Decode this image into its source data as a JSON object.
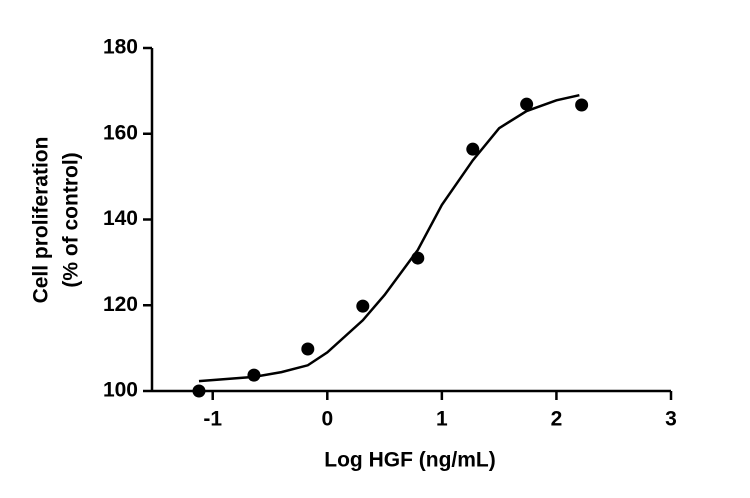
{
  "chart_data": {
    "type": "scatter",
    "x_label": "Log HGF (ng/mL)",
    "y_label": [
      "Cell proliferation",
      "(% of control)"
    ],
    "xlim": [
      -1.53,
      3
    ],
    "xticks": [
      -1,
      0,
      1,
      2,
      3
    ],
    "ylim": [
      100,
      180
    ],
    "yticks": [
      100,
      120,
      140,
      160,
      180
    ],
    "series": [
      {
        "kind": "points",
        "color": "#000000",
        "x": [
          -1.12,
          -0.64,
          -0.17,
          0.31,
          0.79,
          1.27,
          1.74,
          2.22
        ],
        "values": [
          100,
          103.7,
          109.8,
          119.8,
          131,
          156.4,
          166.9,
          166.7
        ]
      },
      {
        "kind": "curve",
        "color": "#000000",
        "x": [
          -1.12,
          -0.64,
          -0.4,
          -0.17,
          0,
          0.31,
          0.5,
          0.79,
          1,
          1.27,
          1.5,
          1.74,
          2,
          2.2
        ],
        "values": [
          102.3,
          103.3,
          104.4,
          106,
          109,
          116.5,
          122.4,
          132.9,
          143.4,
          153.8,
          161.3,
          165.3,
          167.8,
          169
        ]
      }
    ]
  }
}
